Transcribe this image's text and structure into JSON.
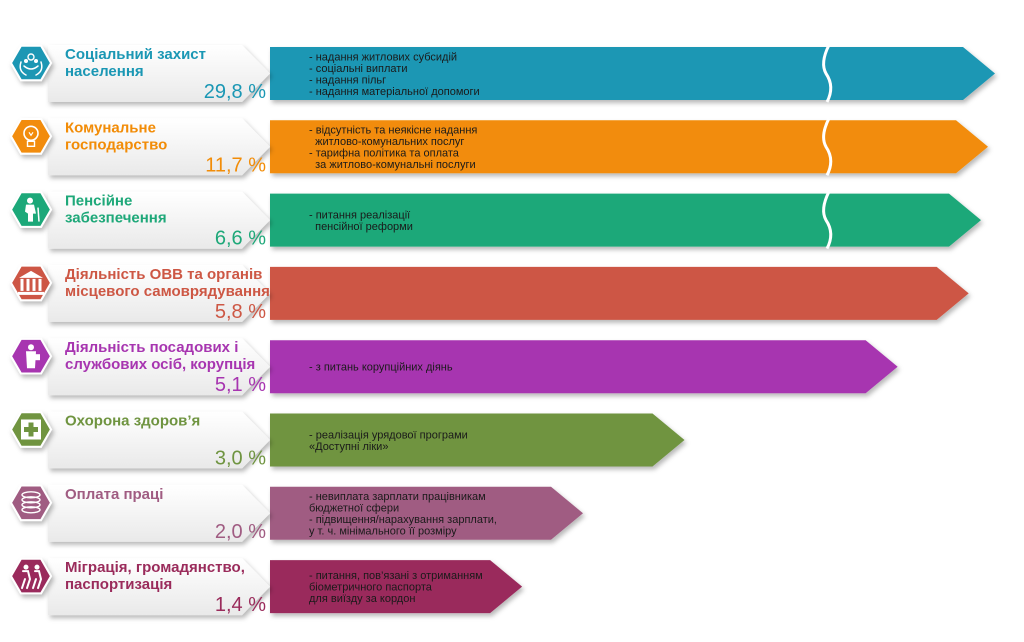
{
  "chart_data": {
    "type": "bar",
    "orientation": "horizontal",
    "unit": "%",
    "categories": [
      "Соціальний захист населення",
      "Комунальне господарство",
      "Пенсійне забезпечення",
      "Діяльність ОВВ та органів місцевого самоврядування",
      "Діяльність посадових і службових осіб, корупція",
      "Охорона здоров’я",
      "Оплата праці",
      "Міграція, громадянство, паспортизація"
    ],
    "values": [
      29.8,
      11.7,
      6.6,
      5.8,
      5.1,
      3.0,
      2.0,
      1.4
    ],
    "axis_break": true,
    "rows": [
      {
        "title": [
          "Соціальний захист",
          "населення"
        ],
        "percent_label": "29,8 %",
        "value": 29.8,
        "color": "#1a97b4",
        "title_color": "#1a97b4",
        "icon": "hands-people-icon",
        "broken": true,
        "description": [
          "- надання житлових субсидій",
          "- соціальні виплати",
          "- надання пільг",
          "- надання матеріальної допомоги"
        ]
      },
      {
        "title": [
          "Комунальне",
          "господарство"
        ],
        "percent_label": "11,7 %",
        "value": 11.7,
        "color": "#f28c07",
        "title_color": "#f28c07",
        "icon": "lightbulb-icon",
        "broken": true,
        "description": [
          "- відсутність та неякісне надання",
          "  житлово-комунальних послуг",
          "- тарифна політика та оплата",
          "  за житлово-комунальні послуги"
        ]
      },
      {
        "title": [
          "Пенсійне",
          "забезпечення"
        ],
        "percent_label": "6,6 %",
        "value": 6.6,
        "color": "#1ea879",
        "title_color": "#1ea879",
        "icon": "elderly-person-icon",
        "broken": true,
        "description": [
          "- питання реалізації",
          "  пенсійної реформи"
        ]
      },
      {
        "title": [
          "Діяльність ОВВ та органів",
          "місцевого самоврядування"
        ],
        "percent_label": "5,8 %",
        "value": 5.8,
        "color": "#cd5744",
        "title_color": "#cd5744",
        "icon": "government-building-icon",
        "broken": false,
        "description": []
      },
      {
        "title": [
          "Діяльність посадових і",
          "службових осіб, корупція"
        ],
        "percent_label": "5,1 %",
        "value": 5.1,
        "color": "#a735b0",
        "title_color": "#a735b0",
        "icon": "official-person-icon",
        "broken": false,
        "description": [
          "- з питань корупційних діянь"
        ]
      },
      {
        "title": [
          "Охорона здоров’я"
        ],
        "percent_label": "3,0 %",
        "value": 3.0,
        "color": "#6f9440",
        "title_color": "#6f9440",
        "icon": "medical-cross-icon",
        "broken": false,
        "description": [
          "- реалізація урядової програми",
          "«Доступні ліки»"
        ]
      },
      {
        "title": [
          "Оплата праці"
        ],
        "percent_label": "2,0 %",
        "value": 2.0,
        "color": "#a05c82",
        "title_color": "#a05c82",
        "icon": "coins-stack-icon",
        "broken": false,
        "description": [
          "- невиплата зарплати працівникам",
          "бюджетної сфери",
          "- підвищення/нарахування зарплати,",
          "у т. ч. мінімального її розміру"
        ]
      },
      {
        "title": [
          "Міграція, громадянство,",
          "паспортизація"
        ],
        "percent_label": "1,4 %",
        "value": 1.4,
        "color": "#9a2b5b",
        "title_color": "#9a2b5b",
        "icon": "travelers-icon",
        "broken": false,
        "description": [
          "- питання, пов’язані з отриманням",
          "біометричного паспорта",
          "для виїзду за кордон"
        ]
      }
    ]
  }
}
